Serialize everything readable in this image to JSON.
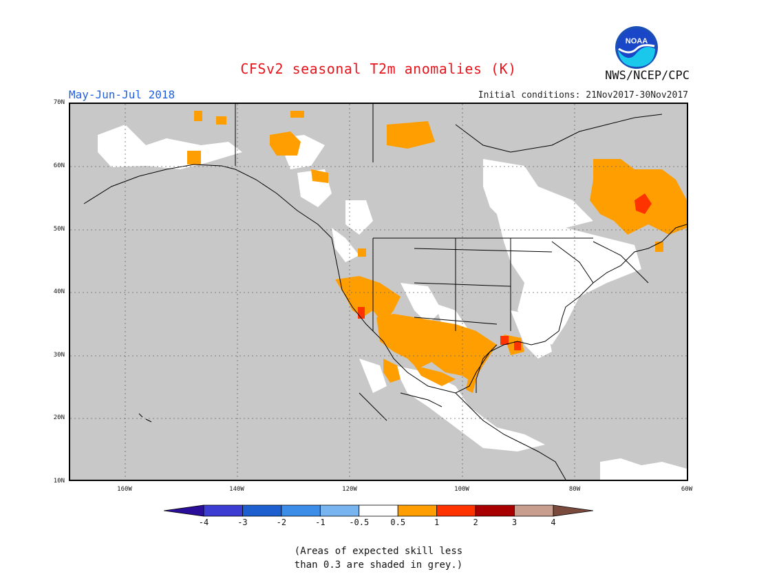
{
  "title": "CFSv2 seasonal T2m anomalies (K)",
  "period": "May-Jun-Jul 2018",
  "initial_conditions": "Initial conditions: 21Nov2017-30Nov2017",
  "agency": "NWS/NCEP/CPC",
  "logo_text": "NOAA",
  "lat_labels": [
    "70N",
    "60N",
    "50N",
    "40N",
    "30N",
    "20N",
    "10N"
  ],
  "lon_labels": [
    "160W",
    "140W",
    "120W",
    "100W",
    "80W",
    "60W"
  ],
  "colorbar": {
    "labels": [
      "-4",
      "-3",
      "-2",
      "-1",
      "-0.5",
      "0.5",
      "1",
      "2",
      "3",
      "4"
    ],
    "colors": [
      "#2a0e9a",
      "#3c3cd2",
      "#1e5fd0",
      "#3b8de8",
      "#78b4f0",
      "#ffffff",
      "#ff9e00",
      "#ff3300",
      "#a80000",
      "#c89e8e",
      "#7a4a3c"
    ]
  },
  "note_line1": "(Areas of expected skill less",
  "note_line2": "than 0.3 are shaded in grey.)",
  "legend_meaning": {
    "grey": "expected skill less than 0.3",
    "white": "-0.5 to 0.5 K",
    "orange": "0.5 to 1 K",
    "red": "1 to 2 K"
  }
}
